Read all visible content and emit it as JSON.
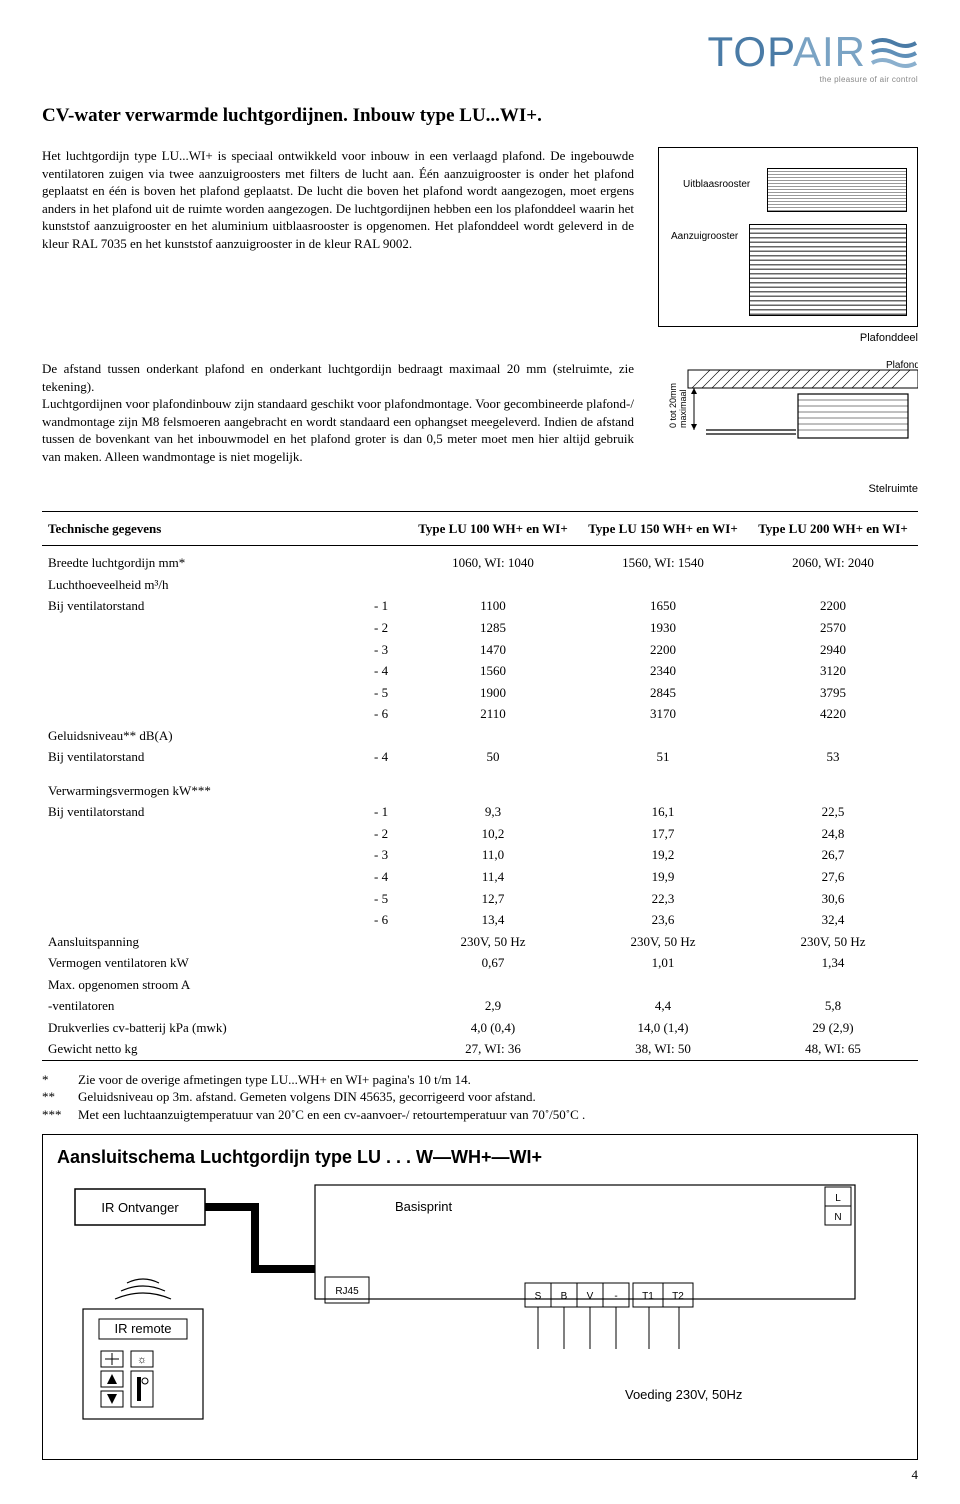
{
  "logo": {
    "brand1": "TOP",
    "brand2": "AIR",
    "tagline": "the pleasure of air control"
  },
  "title": "CV-water verwarmde luchtgordijnen. Inbouw type LU...WI+.",
  "para1": "Het luchtgordijn type LU...WI+ is speciaal ontwikkeld voor inbouw in een verlaagd plafond. De ingebouwde ventilatoren zuigen via twee aanzuigroosters met filters de lucht aan. Één aanzuigrooster is onder het plafond geplaatst en één is boven het plafond geplaatst. De lucht die boven het plafond wordt aangezogen, moet ergens anders in het plafond uit de ruimte worden aangezogen. De luchtgordijnen hebben een los plafonddeel waarin het kunststof aanzuigrooster en het aluminium uitblaasrooster is opgenomen. Het plafonddeel wordt geleverd in de kleur RAL 7035 en het kunststof aanzuigrooster in de kleur RAL 9002.",
  "fig1": {
    "uitblaas": "Uitblaasrooster",
    "aanzuig": "Aanzuigrooster",
    "caption": "Plafonddeel"
  },
  "para2": "De afstand tussen onderkant plafond en onderkant luchtgordijn bedraagt maximaal 20 mm (stelruimte, zie tekening).\nLuchtgordijnen voor plafondinbouw zijn standaard geschikt voor plafondmontage. Voor gecombineerde plafond-/ wandmontage zijn M8 felsmoeren aangebracht en wordt standaard een ophangset meegeleverd. Indien de afstand tussen de bovenkant van het inbouwmodel en het plafond groter is dan 0,5 meter moet men hier altijd gebruik van maken. Alleen wandmontage is niet mogelijk.",
  "fig2": {
    "plafond": "Plafond",
    "dim": "0 tot 20mm\nmaximaal",
    "caption": "Stelruimte"
  },
  "table": {
    "headers": [
      "Technische gegevens",
      "Type LU 100 WH+ en WI+",
      "Type LU 150 WH+ en WI+",
      "Type LU 200 WH+ en WI+"
    ],
    "rows_top": [
      {
        "label": "Breedte luchtgordijn mm*",
        "v": [
          "1060, WI: 1040",
          "1560, WI: 1540",
          "2060, WI: 2040"
        ]
      },
      {
        "label": "Luchthoeveelheid m³/h",
        "v": [
          "",
          "",
          ""
        ]
      },
      {
        "label": "Bij ventilatorstand",
        "sub": "- 1",
        "v": [
          "1100",
          "1650",
          "2200"
        ]
      },
      {
        "label": "",
        "sub": "- 2",
        "v": [
          "1285",
          "1930",
          "2570"
        ]
      },
      {
        "label": "",
        "sub": "- 3",
        "v": [
          "1470",
          "2200",
          "2940"
        ]
      },
      {
        "label": "",
        "sub": "- 4",
        "v": [
          "1560",
          "2340",
          "3120"
        ]
      },
      {
        "label": "",
        "sub": "- 5",
        "v": [
          "1900",
          "2845",
          "3795"
        ]
      },
      {
        "label": "",
        "sub": "- 6",
        "v": [
          "2110",
          "3170",
          "4220"
        ]
      },
      {
        "label": "Geluidsniveau** dB(A)",
        "v": [
          "",
          "",
          ""
        ]
      },
      {
        "label": "Bij ventilatorstand",
        "sub": "- 4",
        "v": [
          "50",
          "51",
          "53"
        ]
      }
    ],
    "rows_bot": [
      {
        "label": "Verwarmingsvermogen kW***",
        "v": [
          "",
          "",
          ""
        ]
      },
      {
        "label": "Bij ventilatorstand",
        "sub": "- 1",
        "v": [
          "9,3",
          "16,1",
          "22,5"
        ]
      },
      {
        "label": "",
        "sub": "- 2",
        "v": [
          "10,2",
          "17,7",
          "24,8"
        ]
      },
      {
        "label": "",
        "sub": "- 3",
        "v": [
          "11,0",
          "19,2",
          "26,7"
        ]
      },
      {
        "label": "",
        "sub": "- 4",
        "v": [
          "11,4",
          "19,9",
          "27,6"
        ]
      },
      {
        "label": "",
        "sub": "- 5",
        "v": [
          "12,7",
          "22,3",
          "30,6"
        ]
      },
      {
        "label": "",
        "sub": "- 6",
        "v": [
          "13,4",
          "23,6",
          "32,4"
        ]
      },
      {
        "label": "Aansluitspanning",
        "v": [
          "230V, 50 Hz",
          "230V, 50 Hz",
          "230V, 50 Hz"
        ]
      },
      {
        "label": "Vermogen ventilatoren kW",
        "v": [
          "0,67",
          "1,01",
          "1,34"
        ]
      },
      {
        "label": "Max. opgenomen stroom A",
        "v": [
          "",
          "",
          ""
        ]
      },
      {
        "label": "-ventilatoren",
        "v": [
          "2,9",
          "4,4",
          "5,8"
        ]
      },
      {
        "label": "Drukverlies cv-batterij kPa (mwk)",
        "v": [
          "4,0 (0,4)",
          "14,0 (1,4)",
          "29 (2,9)"
        ]
      },
      {
        "label": "Gewicht netto kg",
        "v": [
          "27, WI: 36",
          "38, WI: 50",
          "48, WI: 65"
        ]
      }
    ]
  },
  "footnotes": [
    {
      "k": "*",
      "t": "Zie voor de overige afmetingen type LU...WH+ en WI+ pagina's 10 t/m 14."
    },
    {
      "k": "**",
      "t": "Geluidsniveau op 3m. afstand. Gemeten volgens DIN 45635, gecorrigeerd voor afstand."
    },
    {
      "k": "***",
      "t": "Met een luchtaanzuigtemperatuur van 20˚C en een cv-aanvoer-/ retourtemperatuur van 70˚/50˚C ."
    }
  ],
  "schematic": {
    "title": "Aansluitschema Luchtgordijn type LU . . . W—WH+—WI+",
    "ir_ontvanger": "IR Ontvanger",
    "basisprint": "Basisprint",
    "ir_remote": "IR remote",
    "rj45": "RJ45",
    "terminals": [
      "S",
      "B",
      "V",
      "-",
      "T1",
      "T2"
    ],
    "ln": [
      "L",
      "N"
    ],
    "voeding": "Voeding 230V, 50Hz"
  },
  "page_num": "4"
}
